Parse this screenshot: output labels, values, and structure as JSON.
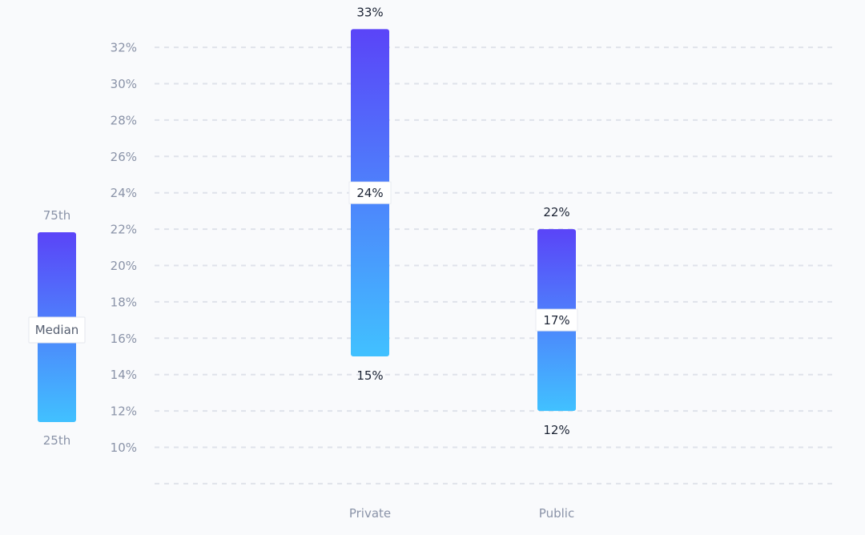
{
  "chart_data": {
    "type": "range-bar",
    "ylim": [
      8,
      33
    ],
    "y_ticks": [
      10,
      12,
      14,
      16,
      18,
      20,
      22,
      24,
      26,
      28,
      30,
      32
    ],
    "tick_suffix": "%",
    "categories": [
      "Private",
      "Public"
    ],
    "p25": [
      15,
      12
    ],
    "median": [
      24,
      17
    ],
    "p75": [
      33,
      22
    ],
    "labels": {
      "p75": [
        "33%",
        "22%"
      ],
      "median": [
        "24%",
        "17%"
      ],
      "p25": [
        "15%",
        "12%"
      ]
    },
    "legend": {
      "top": "75th",
      "middle": "Median",
      "bottom": "25th"
    },
    "colors": {
      "bar_top": "#5a44f8",
      "bar_bottom": "#41c1ff",
      "grid": "#dfe2ea",
      "axis_text": "#8a93a8",
      "value_text": "#1a2233"
    },
    "grid": true
  }
}
